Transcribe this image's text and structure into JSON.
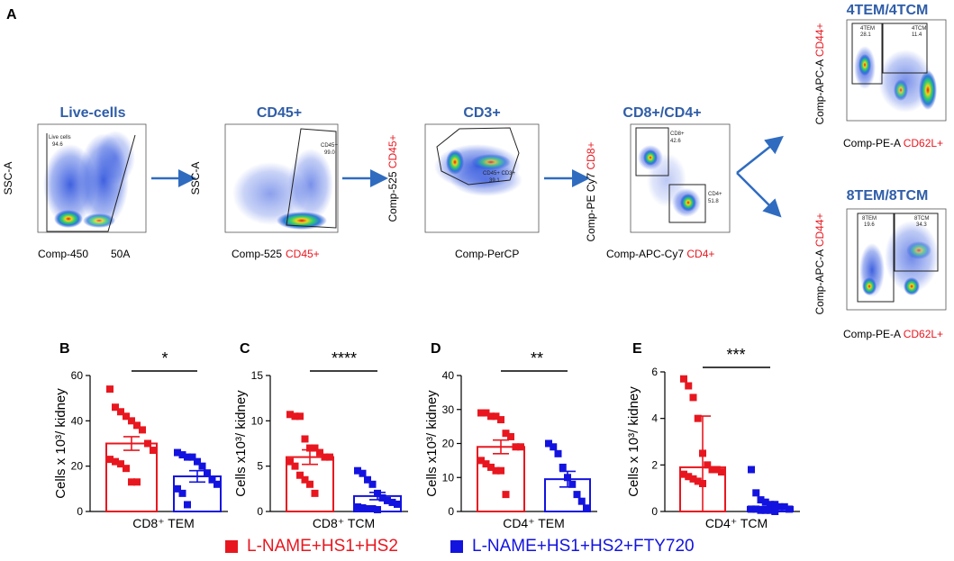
{
  "panel_letters": {
    "a": "A",
    "b": "B",
    "c": "C",
    "d": "D",
    "e": "E"
  },
  "flow": {
    "p1": {
      "title": "Live-cells",
      "ylabel": "SSC-A",
      "xlabel_a": "Comp-450",
      "xlabel_b": "50A",
      "gate_name": "Live cells",
      "gate_value": "94.6"
    },
    "p2": {
      "title": "CD45+",
      "ylabel": "SSC-A",
      "xlabel_a": "Comp-525 ",
      "xlabel_b": "CD45+",
      "gate_name": "CD45+",
      "gate_value": "99.0"
    },
    "p3": {
      "title": "CD3+",
      "ylabel_a": "Comp-525 ",
      "ylabel_b": "CD45+",
      "xlabel": "Comp-PerCP",
      "gate_name": "CD45+ CD3+",
      "gate_value": "39.1"
    },
    "p4": {
      "title": "CD8+/CD4+",
      "ylabel_a": "Comp-PE Cy7 ",
      "ylabel_b": "CD8+",
      "xlabel_a": "Comp-APC-Cy7 ",
      "xlabel_b": "CD4+",
      "gate1_name": "CD8+",
      "gate1_value": "42.6",
      "gate2_name": "CD4+",
      "gate2_value": "51.8"
    },
    "p5": {
      "title": "4TEM/4TCM",
      "ylabel_a": "Comp-APC-A ",
      "ylabel_b": "CD44+",
      "xlabel_a": "Comp-PE-A ",
      "xlabel_b": "CD62L+",
      "gate1_name": "4TEM",
      "gate1_value": "28.1",
      "gate2_name": "4TCM",
      "gate2_value": "11.4"
    },
    "p6": {
      "title": "8TEM/8TCM",
      "ylabel_a": "Comp-APC-A ",
      "ylabel_b": "CD44+",
      "xlabel_a": "Comp-PE-A ",
      "xlabel_b": "CD62L+",
      "gate1_name": "8TEM",
      "gate1_value": "19.6",
      "gate2_name": "8TCM",
      "gate2_value": "34.3"
    }
  },
  "legend": {
    "group1": {
      "label": "L-NAME+HS1+HS2",
      "color": "#e8171f"
    },
    "group2": {
      "label": "L-NAME+HS1+HS2+FTY720",
      "color": "#1313e0"
    }
  },
  "chart_data": [
    {
      "type": "bar",
      "panel": "B",
      "ylabel": "Cells x 10³/ kidney",
      "xlabel": "CD8⁺ TEM",
      "categories": [
        "L-NAME+HS1+HS2",
        "L-NAME+HS1+HS2+FTY720"
      ],
      "values": [
        30,
        15.5
      ],
      "errors": [
        3,
        2.5
      ],
      "points": [
        [
          54,
          46,
          44,
          42,
          40,
          38,
          36,
          30,
          27,
          23,
          22,
          21,
          19,
          13,
          13
        ],
        [
          26,
          25,
          24,
          24,
          22,
          20,
          17,
          14,
          12,
          10,
          8,
          3
        ]
      ],
      "ylim": [
        0,
        60
      ],
      "yticks": [
        "0",
        "20",
        "40",
        "60"
      ],
      "significance": "*"
    },
    {
      "type": "bar",
      "panel": "C",
      "ylabel": "Cells x10³/ kidney",
      "xlabel": "CD8⁺ TCM",
      "categories": [
        "L-NAME+HS1+HS2",
        "L-NAME+HS1+HS2+FTY720"
      ],
      "values": [
        6,
        1.7
      ],
      "errors": [
        0.8,
        0.4
      ],
      "points": [
        [
          10.7,
          10.5,
          10.5,
          8,
          7,
          7,
          6.5,
          6,
          6,
          5.5,
          5,
          4,
          3.5,
          3,
          2
        ],
        [
          4.5,
          4.2,
          3.5,
          3,
          2,
          1.5,
          1.2,
          1,
          0.8,
          0.5,
          0.4,
          0.3,
          0.3,
          0.2
        ]
      ],
      "ylim": [
        0,
        15
      ],
      "yticks": [
        "0",
        "5",
        "10",
        "15"
      ],
      "significance": "****"
    },
    {
      "type": "bar",
      "panel": "D",
      "ylabel": "Cells x10³/ kidney",
      "xlabel": "CD4⁺ TEM",
      "categories": [
        "L-NAME+HS1+HS2",
        "L-NAME+HS1+HS2+FTY720"
      ],
      "values": [
        19,
        9.5
      ],
      "errors": [
        2,
        2.3
      ],
      "points": [
        [
          29,
          29,
          28,
          28,
          27,
          23,
          22,
          19,
          19,
          15,
          14,
          13,
          12,
          12,
          5
        ],
        [
          20,
          19,
          17,
          13,
          10,
          8,
          5,
          3,
          1
        ]
      ],
      "ylim": [
        0,
        40
      ],
      "yticks": [
        "0",
        "10",
        "20",
        "30",
        "40"
      ],
      "significance": "**"
    },
    {
      "type": "bar",
      "panel": "E",
      "ylabel": "Cells x 10³/ kidney",
      "xlabel": "CD4⁺ TCM",
      "categories": [
        "L-NAME+HS1+HS2",
        "L-NAME+HS1+HS2+FTY720"
      ],
      "values": [
        1.9,
        0.2
      ],
      "errors": [
        2.2,
        0.15
      ],
      "points": [
        [
          5.7,
          5.4,
          4.9,
          4.0,
          2.5,
          2.0,
          1.8,
          1.8,
          1.7,
          1.6,
          1.5,
          1.4,
          1.3,
          1.2
        ],
        [
          1.8,
          0.8,
          0.5,
          0.4,
          0.3,
          0.3,
          0.2,
          0.2,
          0.1,
          0.1,
          0.1,
          0.05,
          0.05,
          0.05,
          0.0
        ]
      ],
      "ylim": [
        0,
        6
      ],
      "yticks": [
        "0",
        "2",
        "4",
        "6"
      ],
      "significance": "***"
    }
  ]
}
